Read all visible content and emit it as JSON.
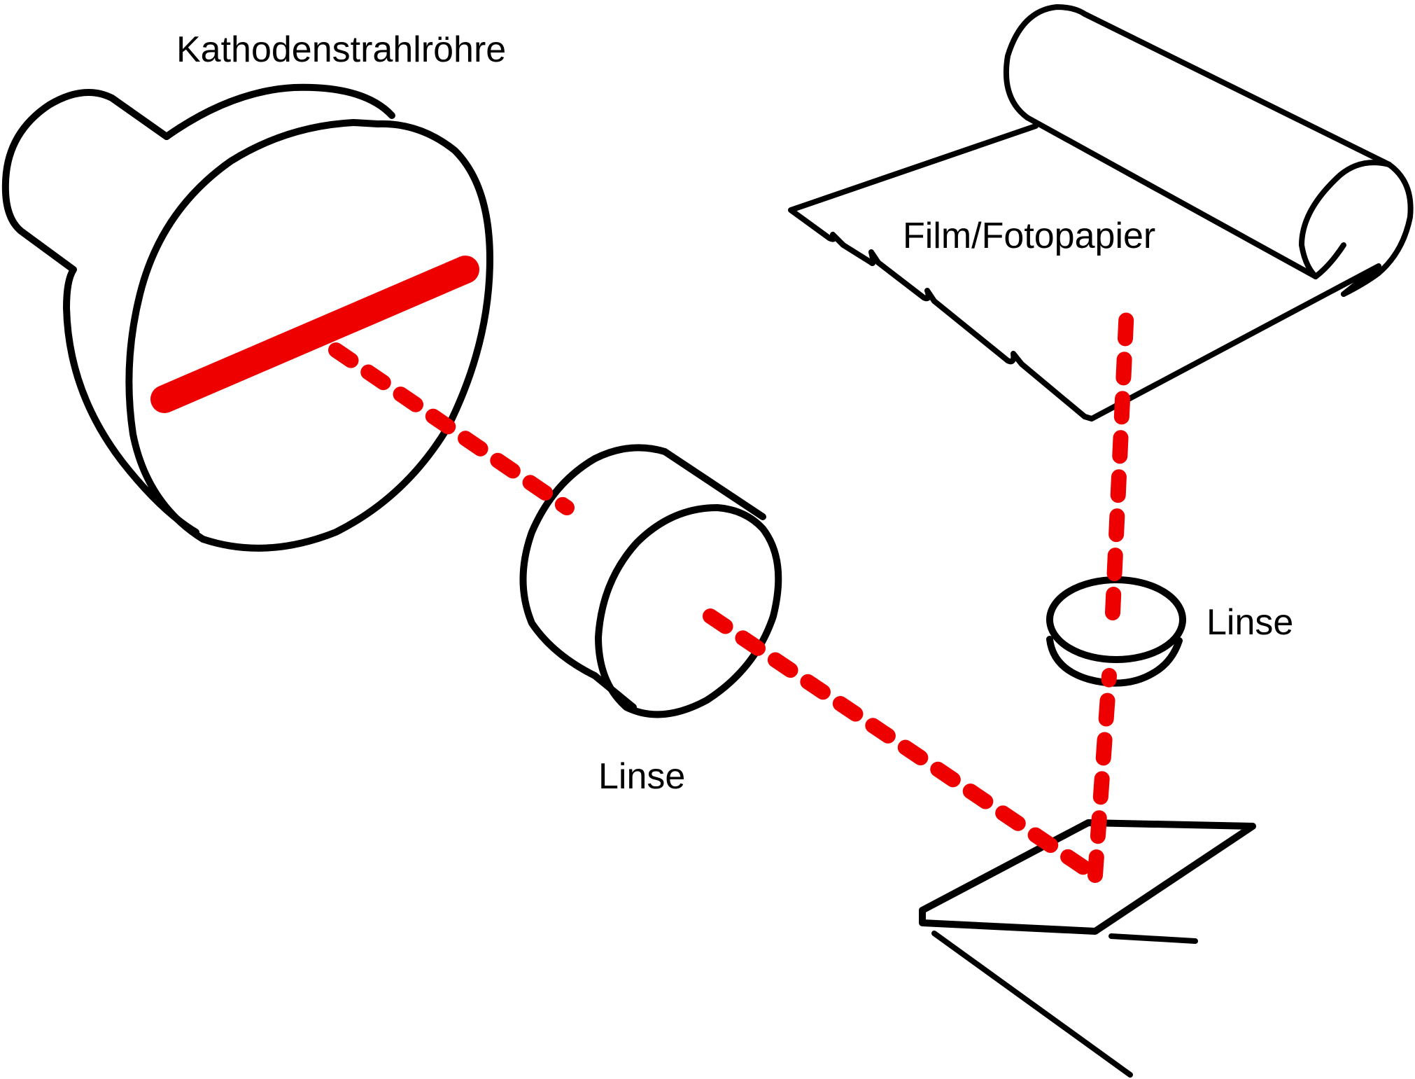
{
  "labels": {
    "crt": "Kathodenstrahlröhre",
    "film": "Film/Fotopapier",
    "lens_1": "Linse",
    "lens_2": "Linse"
  },
  "colors": {
    "outline": "#000000",
    "beam": "#ee0000",
    "background": "#ffffff"
  }
}
